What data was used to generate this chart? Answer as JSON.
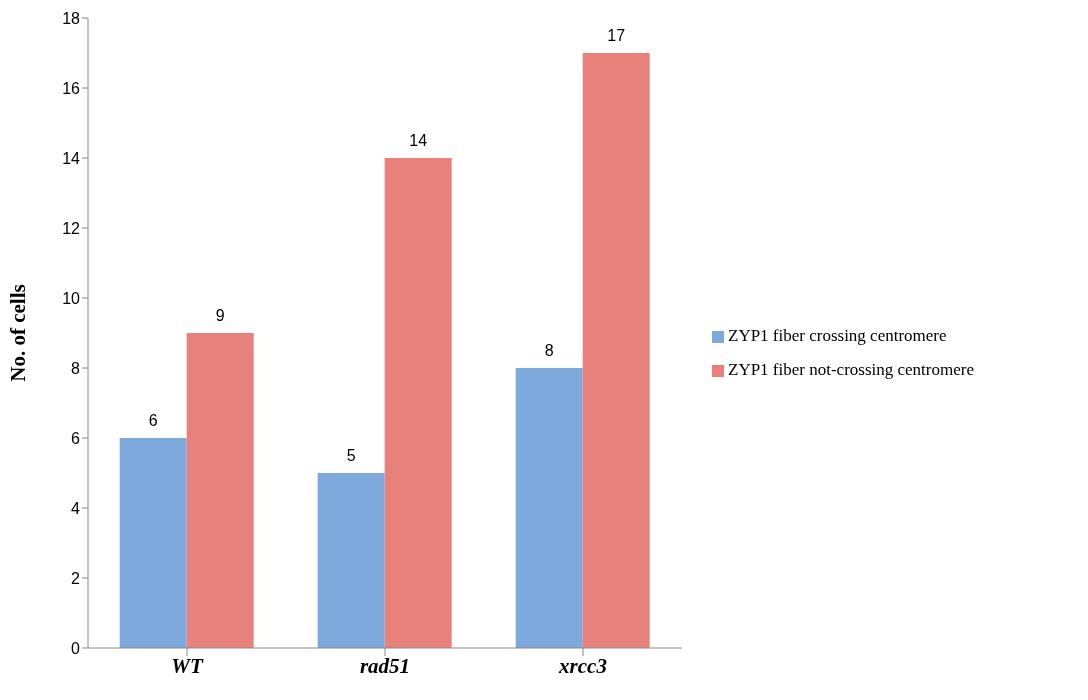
{
  "chart_data": {
    "type": "bar",
    "ylabel": "No. of cells",
    "categories": [
      "WT",
      "rad51",
      "xrcc3"
    ],
    "series": [
      {
        "name": "ZYP1 fiber crossing centromere",
        "color": "#7ea9dc",
        "values": [
          6,
          5,
          8
        ]
      },
      {
        "name": "ZYP1 fiber not-crossing centromere",
        "color": "#e8807c",
        "values": [
          9,
          14,
          17
        ]
      }
    ],
    "ylim": [
      0,
      18
    ],
    "yticks": [
      0,
      2,
      4,
      6,
      8,
      10,
      12,
      14,
      16,
      18
    ],
    "data_labels": true,
    "legend": "right",
    "grid": false
  }
}
